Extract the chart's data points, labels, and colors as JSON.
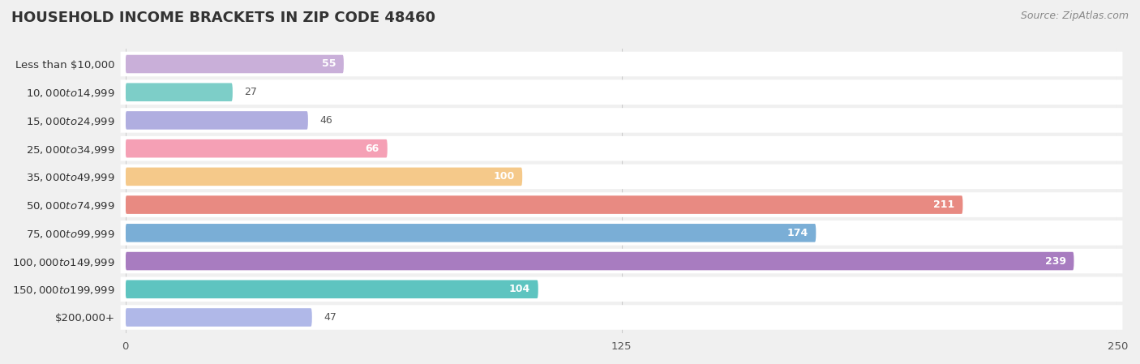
{
  "title": "HOUSEHOLD INCOME BRACKETS IN ZIP CODE 48460",
  "source": "Source: ZipAtlas.com",
  "categories": [
    "Less than $10,000",
    "$10,000 to $14,999",
    "$15,000 to $24,999",
    "$25,000 to $34,999",
    "$35,000 to $49,999",
    "$50,000 to $74,999",
    "$75,000 to $99,999",
    "$100,000 to $149,999",
    "$150,000 to $199,999",
    "$200,000+"
  ],
  "values": [
    55,
    27,
    46,
    66,
    100,
    211,
    174,
    239,
    104,
    47
  ],
  "colors": [
    "#c9afd9",
    "#7dcec8",
    "#b0aee0",
    "#f5a0b5",
    "#f5c98a",
    "#e88a82",
    "#7aaed6",
    "#a87cc0",
    "#5ec4c0",
    "#b0b8e8"
  ],
  "xlim": [
    0,
    250
  ],
  "xticks": [
    0,
    125,
    250
  ],
  "bg_color": "#f0f0f0",
  "row_bg_color": "#ffffff",
  "title_fontsize": 13,
  "label_fontsize": 9.5,
  "value_fontsize": 9,
  "source_fontsize": 9,
  "value_threshold": 50
}
